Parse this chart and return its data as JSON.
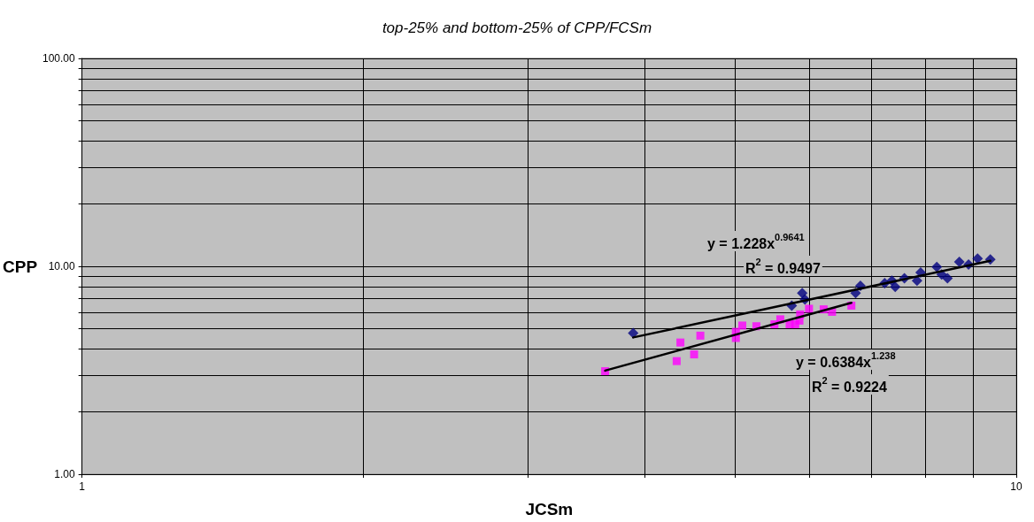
{
  "chart_data": {
    "type": "scatter",
    "title": "top-25% and bottom-25% of CPP/FCSm",
    "xlabel": "JCSm",
    "ylabel": "CPP",
    "log": "xy",
    "grid": true,
    "xlim": [
      1,
      10
    ],
    "ylim": [
      1,
      100
    ],
    "xticks": [
      1,
      {
        "value": 2,
        "label": null
      },
      {
        "value": 3,
        "label": null
      },
      {
        "value": 4,
        "label": null
      },
      {
        "value": 5,
        "label": null
      },
      {
        "value": 6,
        "label": null
      },
      {
        "value": 7,
        "label": null
      },
      {
        "value": 8,
        "label": null
      },
      {
        "value": 9,
        "label": null
      },
      10
    ],
    "yticks": [
      {
        "value": 1,
        "label": "1.00"
      },
      {
        "value": 2,
        "label": null
      },
      {
        "value": 3,
        "label": null
      },
      {
        "value": 4,
        "label": null
      },
      {
        "value": 5,
        "label": null
      },
      {
        "value": 6,
        "label": null
      },
      {
        "value": 7,
        "label": null
      },
      {
        "value": 8,
        "label": null
      },
      {
        "value": 9,
        "label": null
      },
      {
        "value": 10,
        "label": "10.00"
      },
      {
        "value": 20,
        "label": null
      },
      {
        "value": 30,
        "label": null
      },
      {
        "value": 40,
        "label": null
      },
      {
        "value": 50,
        "label": null
      },
      {
        "value": 60,
        "label": null
      },
      {
        "value": 70,
        "label": null
      },
      {
        "value": 80,
        "label": null
      },
      {
        "value": 90,
        "label": null
      },
      {
        "value": 100,
        "label": "100.00"
      }
    ],
    "series": [
      {
        "color": "#000080",
        "marker": "diamond",
        "x": [
          3.89,
          5.75,
          5.9,
          5.94,
          6.73,
          6.81,
          7.23,
          7.36,
          7.42,
          7.59,
          7.83,
          7.9,
          8.22,
          8.32,
          8.44,
          8.69,
          8.89,
          9.09,
          9.38
        ],
        "values": [
          4.77,
          6.47,
          7.43,
          6.93,
          7.43,
          8.07,
          8.3,
          8.53,
          7.96,
          8.77,
          8.53,
          9.33,
          9.93,
          9.14,
          8.77,
          10.5,
          10.2,
          10.9,
          10.8
        ]
      },
      {
        "color": "#ff00ff",
        "marker": "square",
        "x": [
          3.63,
          4.33,
          4.37,
          4.52,
          4.59,
          5.01,
          5.01,
          5.09,
          5.27,
          5.51,
          5.59,
          5.72,
          5.8,
          5.86,
          5.87,
          6.0,
          6.22,
          6.35,
          6.66
        ],
        "values": [
          3.13,
          3.5,
          4.3,
          3.77,
          4.64,
          4.52,
          4.84,
          5.19,
          5.15,
          5.26,
          5.56,
          5.26,
          5.26,
          5.48,
          5.87,
          6.25,
          6.21,
          6.04,
          6.47
        ]
      },
      {
        "type": "line",
        "color": "#000000",
        "marker": "none",
        "line_style": "solid",
        "x": [
          3.89,
          9.38
        ],
        "values": [
          4.55,
          10.63
        ]
      },
      {
        "type": "line",
        "color": "#000000",
        "marker": "none",
        "line_style": "solid",
        "x": [
          3.63,
          6.66
        ],
        "values": [
          3.15,
          6.68
        ]
      }
    ],
    "annotations": [
      "y = 1.228x$^{0.9641}$",
      "R$^{2}$ = 0.9497",
      "y = 0.6384x$^{1.238}$",
      "R$^{2}$ = 0.9224"
    ]
  }
}
